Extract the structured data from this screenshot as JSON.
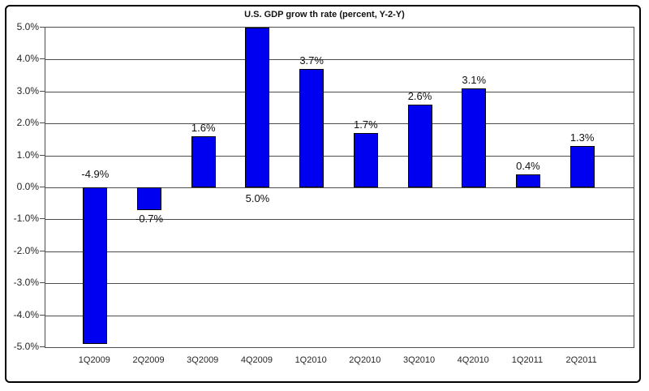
{
  "window": {
    "background_color": "#ffffff",
    "frame_border_color": "#000000"
  },
  "chart_data": {
    "type": "bar",
    "title": "U.S. GDP grow th rate (percent, Y-2-Y)",
    "xlabel": "",
    "ylabel": "",
    "categories": [
      "1Q2009",
      "2Q2009",
      "3Q2009",
      "4Q2009",
      "1Q2010",
      "2Q2010",
      "3Q2010",
      "4Q2010",
      "1Q2011",
      "2Q2011"
    ],
    "values": [
      -4.9,
      -0.7,
      1.6,
      5.0,
      3.7,
      1.7,
      2.6,
      3.1,
      0.4,
      1.3
    ],
    "data_labels": [
      "-4.9%",
      "-0.7%",
      "1.6%",
      "5.0%",
      "3.7%",
      "1.7%",
      "2.6%",
      "3.1%",
      "0.4%",
      "1.3%"
    ],
    "label_placement": [
      "base-above",
      "end-below",
      "end-above",
      "base-below",
      "end-above",
      "end-above",
      "end-above",
      "end-above",
      "end-above",
      "end-above"
    ],
    "ylim": [
      -5,
      5
    ],
    "y_tick_step": 1.0,
    "y_tick_labels": [
      "5.0%",
      "4.0%",
      "3.0%",
      "2.0%",
      "1.0%",
      "0.0%",
      "-1.0%",
      "-2.0%",
      "-3.0%",
      "-4.0%",
      "-5.0%"
    ],
    "grid": "horizontal",
    "legend": "none",
    "bar_color": "#0000f0",
    "bar_border_color": "#000000",
    "gridline_color": "#4d4d4d",
    "axis_text_color": "#262626"
  }
}
